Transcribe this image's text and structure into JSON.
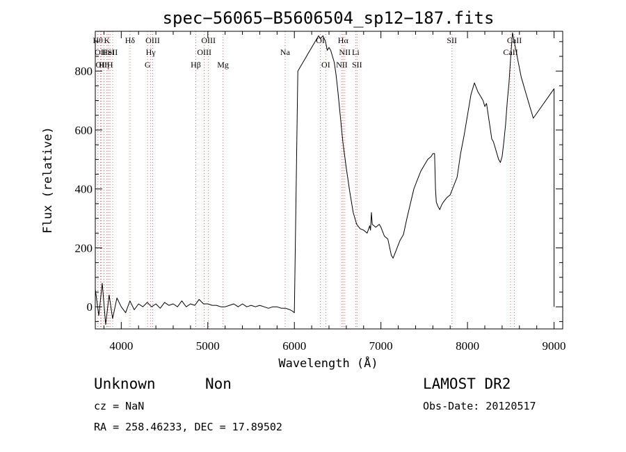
{
  "chart_data": {
    "type": "line",
    "title": "spec−56065−B5606504_sp12−187.fits",
    "xlabel": "Wavelength (Å)",
    "ylabel": "Flux (relative)",
    "xlim": [
      3700,
      9100
    ],
    "ylim": [
      -75,
      935
    ],
    "xticks": [
      4000,
      5000,
      6000,
      7000,
      8000,
      9000
    ],
    "yticks": [
      0,
      200,
      400,
      600,
      800
    ],
    "grid": false,
    "series": [
      {
        "x": [
          3700,
          3740,
          3780,
          3820,
          3860,
          3900,
          3950,
          4000,
          4050,
          4100,
          4150,
          4200,
          4250,
          4300,
          4350,
          4400,
          4450,
          4500,
          4550,
          4600,
          4650,
          4700,
          4750,
          4800,
          4850,
          4900,
          4950,
          5000,
          5050,
          5100,
          5150,
          5200,
          5250,
          5300,
          5350,
          5400,
          5450,
          5500,
          5550,
          5600,
          5650,
          5700,
          5750,
          5800,
          5850,
          5900,
          5950,
          5980,
          6000,
          6040,
          6080,
          6120,
          6160,
          6200,
          6240,
          6280,
          6300,
          6330,
          6360,
          6380,
          6400,
          6420,
          6440,
          6460,
          6480,
          6500,
          6520,
          6540,
          6560,
          6600,
          6640,
          6680,
          6720,
          6760,
          6800,
          6840,
          6870,
          6880,
          6890,
          6900,
          6940,
          6980,
          7000,
          7040,
          7080,
          7120,
          7140,
          7180,
          7220,
          7260,
          7300,
          7340,
          7380,
          7420,
          7460,
          7500,
          7540,
          7580,
          7600,
          7620,
          7630,
          7640,
          7660,
          7680,
          7700,
          7720,
          7760,
          7800,
          7840,
          7880,
          7920,
          7960,
          8000,
          8040,
          8080,
          8120,
          8160,
          8180,
          8200,
          8220,
          8240,
          8260,
          8280,
          8300,
          8320,
          8340,
          8360,
          8380,
          8400,
          8420,
          8440,
          8460,
          8480,
          8500,
          8520,
          8540,
          8560,
          8580,
          8600,
          8620,
          8640,
          8660,
          8680,
          8700,
          8720,
          8740,
          8760,
          9000,
          9000
        ],
        "y": [
          60,
          -30,
          80,
          -60,
          40,
          -40,
          30,
          0,
          -20,
          20,
          -10,
          10,
          0,
          15,
          0,
          10,
          -5,
          15,
          5,
          10,
          0,
          20,
          0,
          10,
          5,
          25,
          10,
          10,
          5,
          5,
          0,
          0,
          5,
          10,
          0,
          10,
          0,
          5,
          0,
          5,
          0,
          -5,
          0,
          0,
          -5,
          -5,
          -10,
          -15,
          -20,
          800,
          820,
          840,
          860,
          880,
          900,
          920,
          910,
          920,
          900,
          870,
          880,
          870,
          850,
          830,
          790,
          740,
          680,
          620,
          560,
          470,
          390,
          320,
          280,
          265,
          260,
          250,
          275,
          260,
          320,
          280,
          270,
          280,
          270,
          240,
          230,
          175,
          165,
          195,
          225,
          245,
          300,
          350,
          400,
          430,
          460,
          480,
          500,
          510,
          520,
          520,
          400,
          355,
          340,
          330,
          345,
          355,
          370,
          380,
          410,
          440,
          520,
          580,
          650,
          720,
          760,
          730,
          710,
          700,
          680,
          690,
          650,
          610,
          570,
          560,
          540,
          520,
          500,
          490,
          510,
          560,
          620,
          700,
          760,
          850,
          930,
          900,
          870,
          840,
          810,
          780,
          760,
          740,
          720,
          700,
          680,
          660,
          640,
          740,
          0
        ],
        "color": "#000000"
      }
    ],
    "line_markers": [
      {
        "x": 3730,
        "label": "Hθ",
        "row": 0
      },
      {
        "x": 3760,
        "label": "OII",
        "row": 1
      },
      {
        "x": 3770,
        "label": "OII",
        "row": 2
      },
      {
        "x": 3800,
        "label": "Hη",
        "row": 2
      },
      {
        "x": 3835,
        "label": "K",
        "row": 0
      },
      {
        "x": 3850,
        "label": "HeI",
        "row": 1
      },
      {
        "x": 3870,
        "label": "H",
        "row": 2
      },
      {
        "x": 3900,
        "label": "SII",
        "row": 1
      },
      {
        "x": 4101,
        "label": "Hδ",
        "row": 0
      },
      {
        "x": 4304,
        "label": "G",
        "row": 2
      },
      {
        "x": 4340,
        "label": "Hγ",
        "row": 1
      },
      {
        "x": 4363,
        "label": "OIII",
        "row": 0
      },
      {
        "x": 4861,
        "label": "Hβ",
        "row": 2
      },
      {
        "x": 4959,
        "label": "OIII",
        "row": 1
      },
      {
        "x": 5007,
        "label": "OIII",
        "row": 0
      },
      {
        "x": 5175,
        "label": "Mg",
        "row": 2
      },
      {
        "x": 5893,
        "label": "Na",
        "row": 1
      },
      {
        "x": 6300,
        "label": "OI",
        "row": 0
      },
      {
        "x": 6363,
        "label": "OI",
        "row": 2
      },
      {
        "x": 6563,
        "label": "Hα",
        "row": 0
      },
      {
        "x": 6583,
        "label": "NII",
        "row": 1
      },
      {
        "x": 6548,
        "label": "NII",
        "row": 2
      },
      {
        "x": 6708,
        "label": "Li",
        "row": 1
      },
      {
        "x": 6724,
        "label": "SII",
        "row": 2
      },
      {
        "x": 7820,
        "label": "SII",
        "row": 0
      },
      {
        "x": 8498,
        "label": "CaII",
        "row": 1
      },
      {
        "x": 8542,
        "label": "CaII",
        "row": 0
      }
    ]
  },
  "footer": {
    "class_label": "Unknown",
    "subclass_label": "Non",
    "survey": "LAMOST DR2",
    "cz": "cz = NaN",
    "obs_date": "Obs-Date: 20120517",
    "coords": "RA = 258.46233, DEC =  17.89502"
  }
}
